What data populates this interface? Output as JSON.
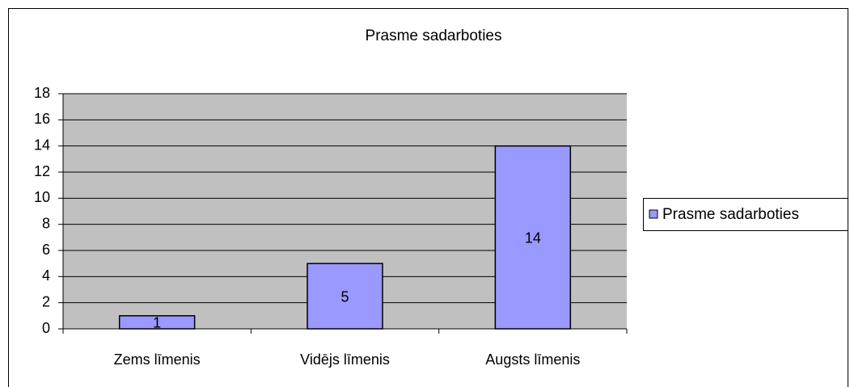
{
  "chart_data": {
    "type": "bar",
    "title": "Prasme sadarboties",
    "categories": [
      "Zems līmenis",
      "Vidējs līmenis",
      "Augsts līmenis"
    ],
    "series": [
      {
        "name": "Prasme sadarboties",
        "color": "#9999ff",
        "values": [
          1,
          5,
          14
        ]
      }
    ],
    "ylim": [
      0,
      18
    ],
    "yticks": [
      0,
      2,
      4,
      6,
      8,
      10,
      12,
      14,
      16,
      18
    ],
    "grid": true,
    "legend": "right"
  }
}
